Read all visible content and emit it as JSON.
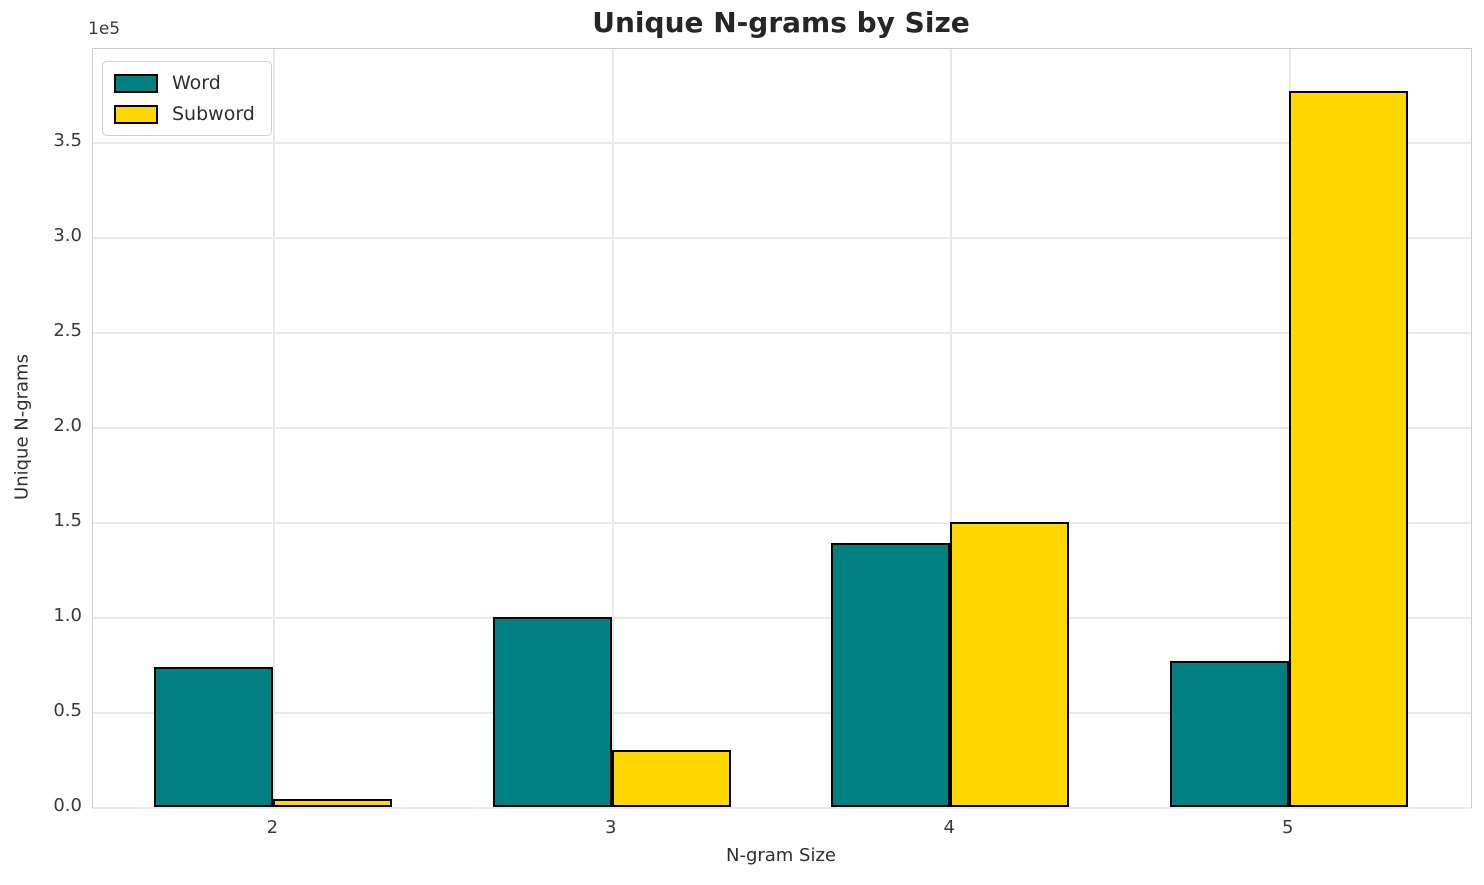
{
  "chart_data": {
    "type": "bar",
    "title": "Unique N-grams by Size",
    "xlabel": "N-gram Size",
    "ylabel": "Unique N-grams",
    "y_offset_label": "1e5",
    "categories": [
      "2",
      "3",
      "4",
      "5"
    ],
    "series": [
      {
        "name": "Word",
        "color": "#008080",
        "values": [
          73500,
          100000,
          139000,
          77000
        ]
      },
      {
        "name": "Subword",
        "color": "#FFD700",
        "values": [
          4000,
          30000,
          150000,
          377000
        ]
      }
    ],
    "ylim": [
      0,
      399000
    ],
    "yticks": [
      0,
      50000,
      100000,
      150000,
      200000,
      250000,
      300000,
      350000
    ],
    "ytick_labels": [
      "0.0",
      "0.5",
      "1.0",
      "1.5",
      "2.0",
      "2.5",
      "3.0",
      "3.5"
    ],
    "bar_edge_color": "#000000",
    "grid": true,
    "legend_position": "upper left"
  }
}
